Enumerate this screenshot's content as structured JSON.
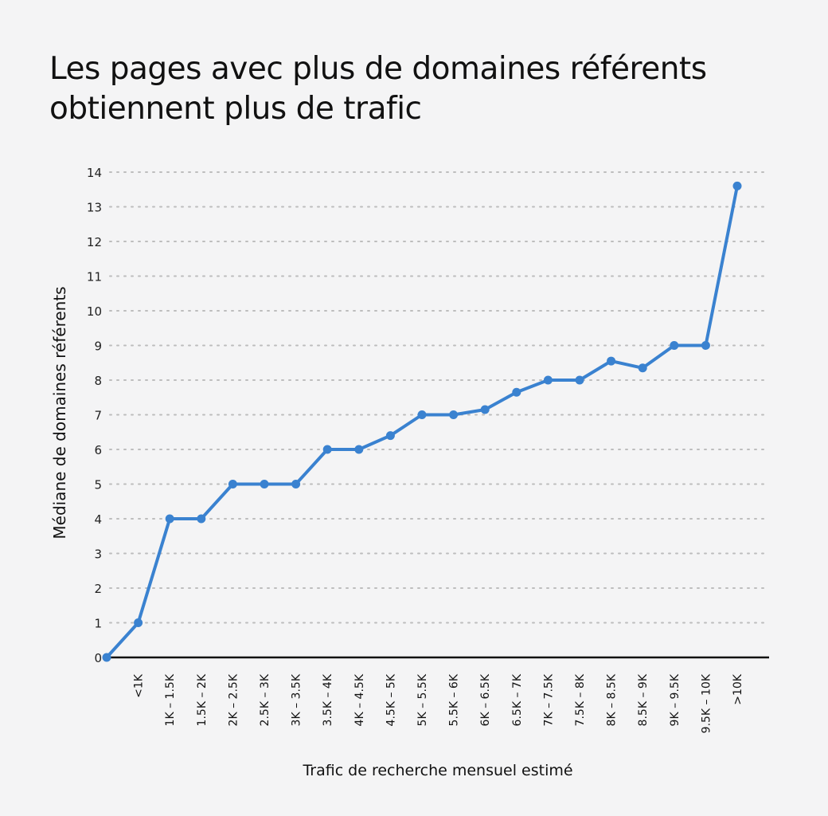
{
  "chart_data": {
    "type": "line",
    "title": "Les pages avec plus de domaines référents obtiennent plus de trafic",
    "xlabel": "Trafic de recherche mensuel estimé",
    "ylabel": "Médiane de domaines référents",
    "ylim": [
      0,
      14
    ],
    "yticks": [
      0,
      1,
      2,
      3,
      4,
      5,
      6,
      7,
      8,
      9,
      10,
      11,
      12,
      13,
      14
    ],
    "grid": true,
    "line_color": "#3a82d0",
    "categories": [
      "",
      "<1K",
      "1K – 1.5K",
      "1.5K – 2K",
      "2K – 2.5K",
      "2.5K – 3K",
      "3K – 3.5K",
      "3.5K – 4K",
      "4K – 4.5K",
      "4.5K – 5K",
      "5K – 5.5K",
      "5.5K – 6K",
      "6K – 6.5K",
      "6.5K – 7K",
      "7K – 7.5K",
      "7.5K – 8K",
      "8K – 8.5K",
      "8.5K – 9K",
      "9K – 9.5K",
      "9.5K – 10K",
      ">10K"
    ],
    "values": [
      0,
      1,
      4,
      4,
      5,
      5,
      5,
      6,
      6,
      6.4,
      7,
      7,
      7.15,
      7.65,
      8,
      8,
      8.55,
      8.35,
      9,
      9,
      13.6
    ]
  }
}
